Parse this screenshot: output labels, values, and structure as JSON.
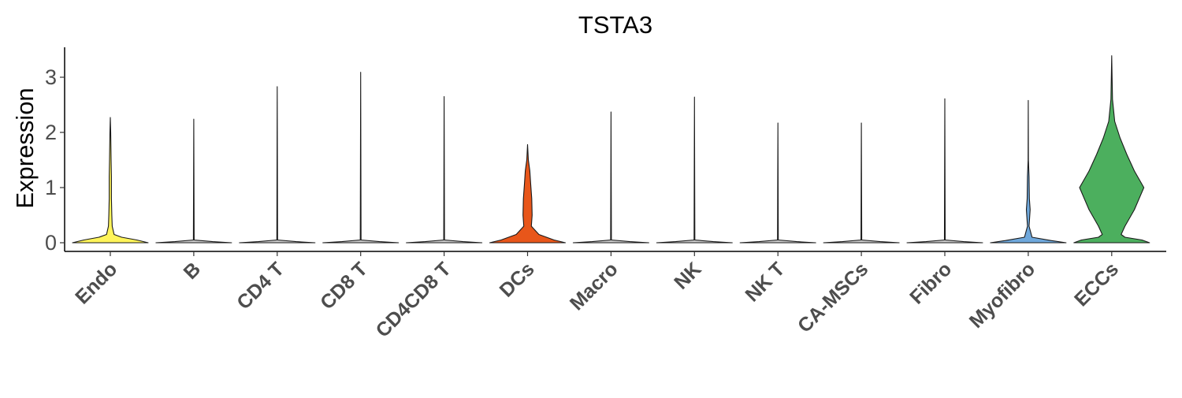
{
  "chart_data": {
    "type": "violin",
    "title": "TSTA3",
    "xlabel": "",
    "ylabel": "Expression",
    "ylim": [
      -0.15,
      3.55
    ],
    "yticks": [
      "0",
      "1",
      "2",
      "3"
    ],
    "grid": false,
    "categories": [
      "Endo",
      "B",
      "CD4 T",
      "CD8 T",
      "CD4CD8 T",
      "DCs",
      "Macro",
      "NK",
      "NK T",
      "CA-MSCs",
      "Fibro",
      "Myofibro",
      "ECCs"
    ],
    "colors": [
      "#FFF45A",
      "#C8C8C8",
      "#C8C8C8",
      "#C8C8C8",
      "#C8C8C8",
      "#E8561A",
      "#C8C8C8",
      "#C8C8C8",
      "#C8C8C8",
      "#C8C8C8",
      "#C8C8C8",
      "#6FA8DC",
      "#4CAF5E"
    ],
    "max_values": [
      2.27,
      2.24,
      2.83,
      3.09,
      2.65,
      1.78,
      2.37,
      2.64,
      2.17,
      2.17,
      2.61,
      2.58,
      3.39
    ],
    "density_profiles": [
      [
        [
          0,
          1.0
        ],
        [
          0.05,
          0.7
        ],
        [
          0.1,
          0.3
        ],
        [
          0.15,
          0.1
        ],
        [
          0.3,
          0.05
        ],
        [
          0.5,
          0.04
        ],
        [
          0.8,
          0.03
        ],
        [
          1.2,
          0.03
        ],
        [
          1.5,
          0.02
        ],
        [
          2.0,
          0.01
        ],
        [
          2.27,
          0
        ]
      ],
      [
        [
          0,
          1.0
        ],
        [
          0.02,
          0.5
        ],
        [
          0.05,
          0.01
        ],
        [
          2.24,
          0
        ]
      ],
      [
        [
          0,
          1.0
        ],
        [
          0.02,
          0.5
        ],
        [
          0.05,
          0.01
        ],
        [
          2.83,
          0
        ]
      ],
      [
        [
          0,
          1.0
        ],
        [
          0.02,
          0.5
        ],
        [
          0.05,
          0.01
        ],
        [
          3.09,
          0
        ]
      ],
      [
        [
          0,
          1.0
        ],
        [
          0.02,
          0.5
        ],
        [
          0.05,
          0.01
        ],
        [
          2.65,
          0
        ]
      ],
      [
        [
          0,
          1.0
        ],
        [
          0.05,
          0.7
        ],
        [
          0.15,
          0.3
        ],
        [
          0.3,
          0.1
        ],
        [
          0.5,
          0.12
        ],
        [
          0.8,
          0.11
        ],
        [
          1.1,
          0.08
        ],
        [
          1.3,
          0.06
        ],
        [
          1.5,
          0.02
        ],
        [
          1.78,
          0
        ]
      ],
      [
        [
          0,
          1.0
        ],
        [
          0.02,
          0.5
        ],
        [
          0.05,
          0.01
        ],
        [
          2.37,
          0
        ]
      ],
      [
        [
          0,
          1.0
        ],
        [
          0.02,
          0.5
        ],
        [
          0.05,
          0.01
        ],
        [
          2.64,
          0
        ]
      ],
      [
        [
          0,
          1.0
        ],
        [
          0.02,
          0.5
        ],
        [
          0.05,
          0.01
        ],
        [
          2.17,
          0
        ]
      ],
      [
        [
          0,
          1.0
        ],
        [
          0.02,
          0.5
        ],
        [
          0.05,
          0.01
        ],
        [
          2.17,
          0
        ]
      ],
      [
        [
          0,
          1.0
        ],
        [
          0.02,
          0.5
        ],
        [
          0.05,
          0.01
        ],
        [
          2.61,
          0
        ]
      ],
      [
        [
          0,
          1.0
        ],
        [
          0.04,
          0.6
        ],
        [
          0.1,
          0.1
        ],
        [
          0.3,
          0.02
        ],
        [
          0.6,
          0.05
        ],
        [
          0.8,
          0.03
        ],
        [
          1.2,
          0.02
        ],
        [
          1.5,
          0.005
        ],
        [
          2.58,
          0
        ]
      ],
      [
        [
          0,
          1.0
        ],
        [
          0.05,
          0.8
        ],
        [
          0.1,
          0.35
        ],
        [
          0.15,
          0.25
        ],
        [
          0.3,
          0.35
        ],
        [
          0.6,
          0.6
        ],
        [
          1.0,
          0.85
        ],
        [
          1.3,
          0.6
        ],
        [
          1.6,
          0.4
        ],
        [
          1.9,
          0.22
        ],
        [
          2.2,
          0.08
        ],
        [
          2.6,
          0.02
        ],
        [
          3.39,
          0
        ]
      ]
    ]
  }
}
